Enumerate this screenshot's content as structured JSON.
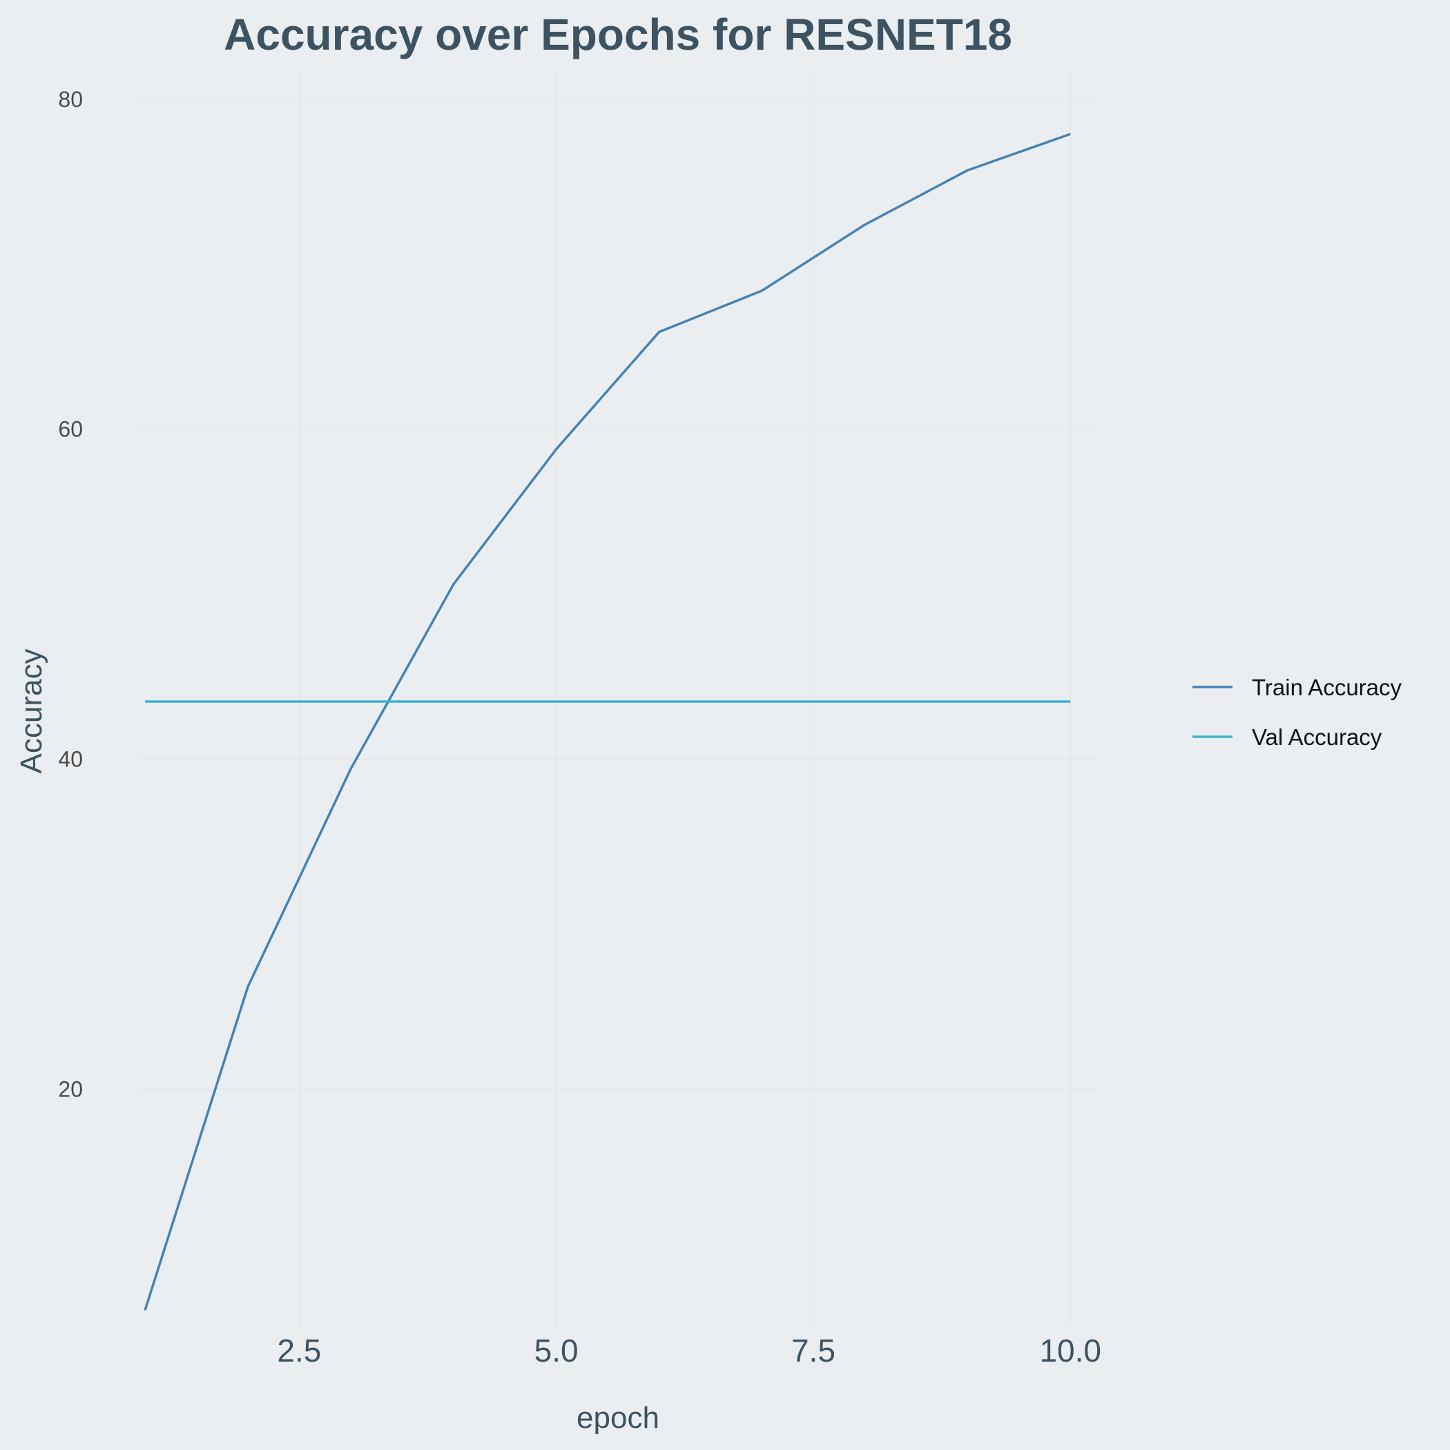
{
  "colors": {
    "background": "#ebeef1",
    "text": "#3e5361",
    "tick_text": "#4a4a4a",
    "legend_text": "#111111",
    "grid": "#e6e4e2"
  },
  "chart_data": {
    "type": "line",
    "title": "Accuracy over Epochs for RESNET18",
    "xlabel": "epoch",
    "ylabel": "Accuracy",
    "xlim": [
      1,
      10.2
    ],
    "ylim": [
      6.5,
      81
    ],
    "x_ticks": [
      2.5,
      5.0,
      7.5,
      10.0
    ],
    "x_tick_labels": [
      "2.5",
      "5.0",
      "7.5",
      "10.0"
    ],
    "y_ticks": [
      20,
      40,
      60,
      80
    ],
    "y_tick_labels": [
      "20",
      "40",
      "60",
      "80"
    ],
    "grid": true,
    "legend_position": "right",
    "x": [
      1,
      2,
      3,
      4,
      5,
      6,
      7,
      8,
      9,
      10
    ],
    "series": [
      {
        "name": "Train Accuracy",
        "color": "#4682b4",
        "values": [
          6.6,
          26.2,
          39.4,
          50.6,
          58.8,
          65.9,
          68.4,
          72.4,
          75.7,
          77.9
        ]
      },
      {
        "name": "Val Accuracy",
        "color": "#3cb4cc",
        "values": [
          43.5,
          43.5,
          43.5,
          43.5,
          43.5,
          43.5,
          43.5,
          43.5,
          43.5,
          43.5
        ]
      }
    ]
  }
}
